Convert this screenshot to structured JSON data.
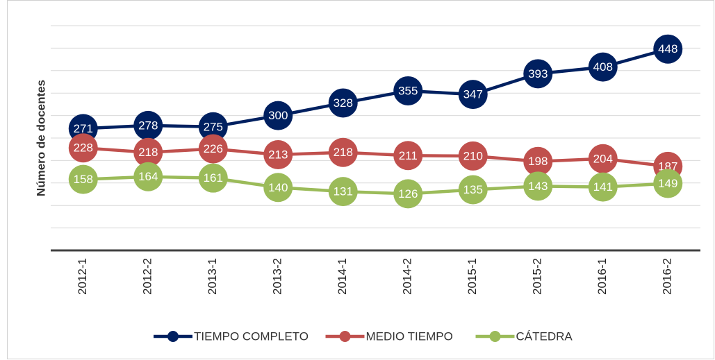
{
  "chart_data": {
    "type": "line",
    "y_label": "Número de docentes",
    "categories": [
      "2012-1",
      "2012-2",
      "2013-1",
      "2013-2",
      "2014-1",
      "2014-2",
      "2015-1",
      "2015-2",
      "2016-1",
      "2016-2"
    ],
    "series": [
      {
        "name": "TIEMPO COMPLETO",
        "color": "#002060",
        "values": [
          271,
          278,
          275,
          300,
          328,
          355,
          347,
          393,
          408,
          448
        ]
      },
      {
        "name": "MEDIO TIEMPO",
        "color": "#c0504d",
        "values": [
          228,
          218,
          226,
          213,
          218,
          211,
          210,
          198,
          204,
          187
        ]
      },
      {
        "name": "CÁTEDRA",
        "color": "#9bbb59",
        "values": [
          158,
          164,
          161,
          140,
          131,
          126,
          135,
          143,
          141,
          149
        ]
      }
    ],
    "ylim": [
      0,
      500
    ],
    "yticks": [
      0,
      50,
      100,
      150,
      200,
      250,
      300,
      350,
      400,
      450,
      500
    ],
    "grid": true
  }
}
